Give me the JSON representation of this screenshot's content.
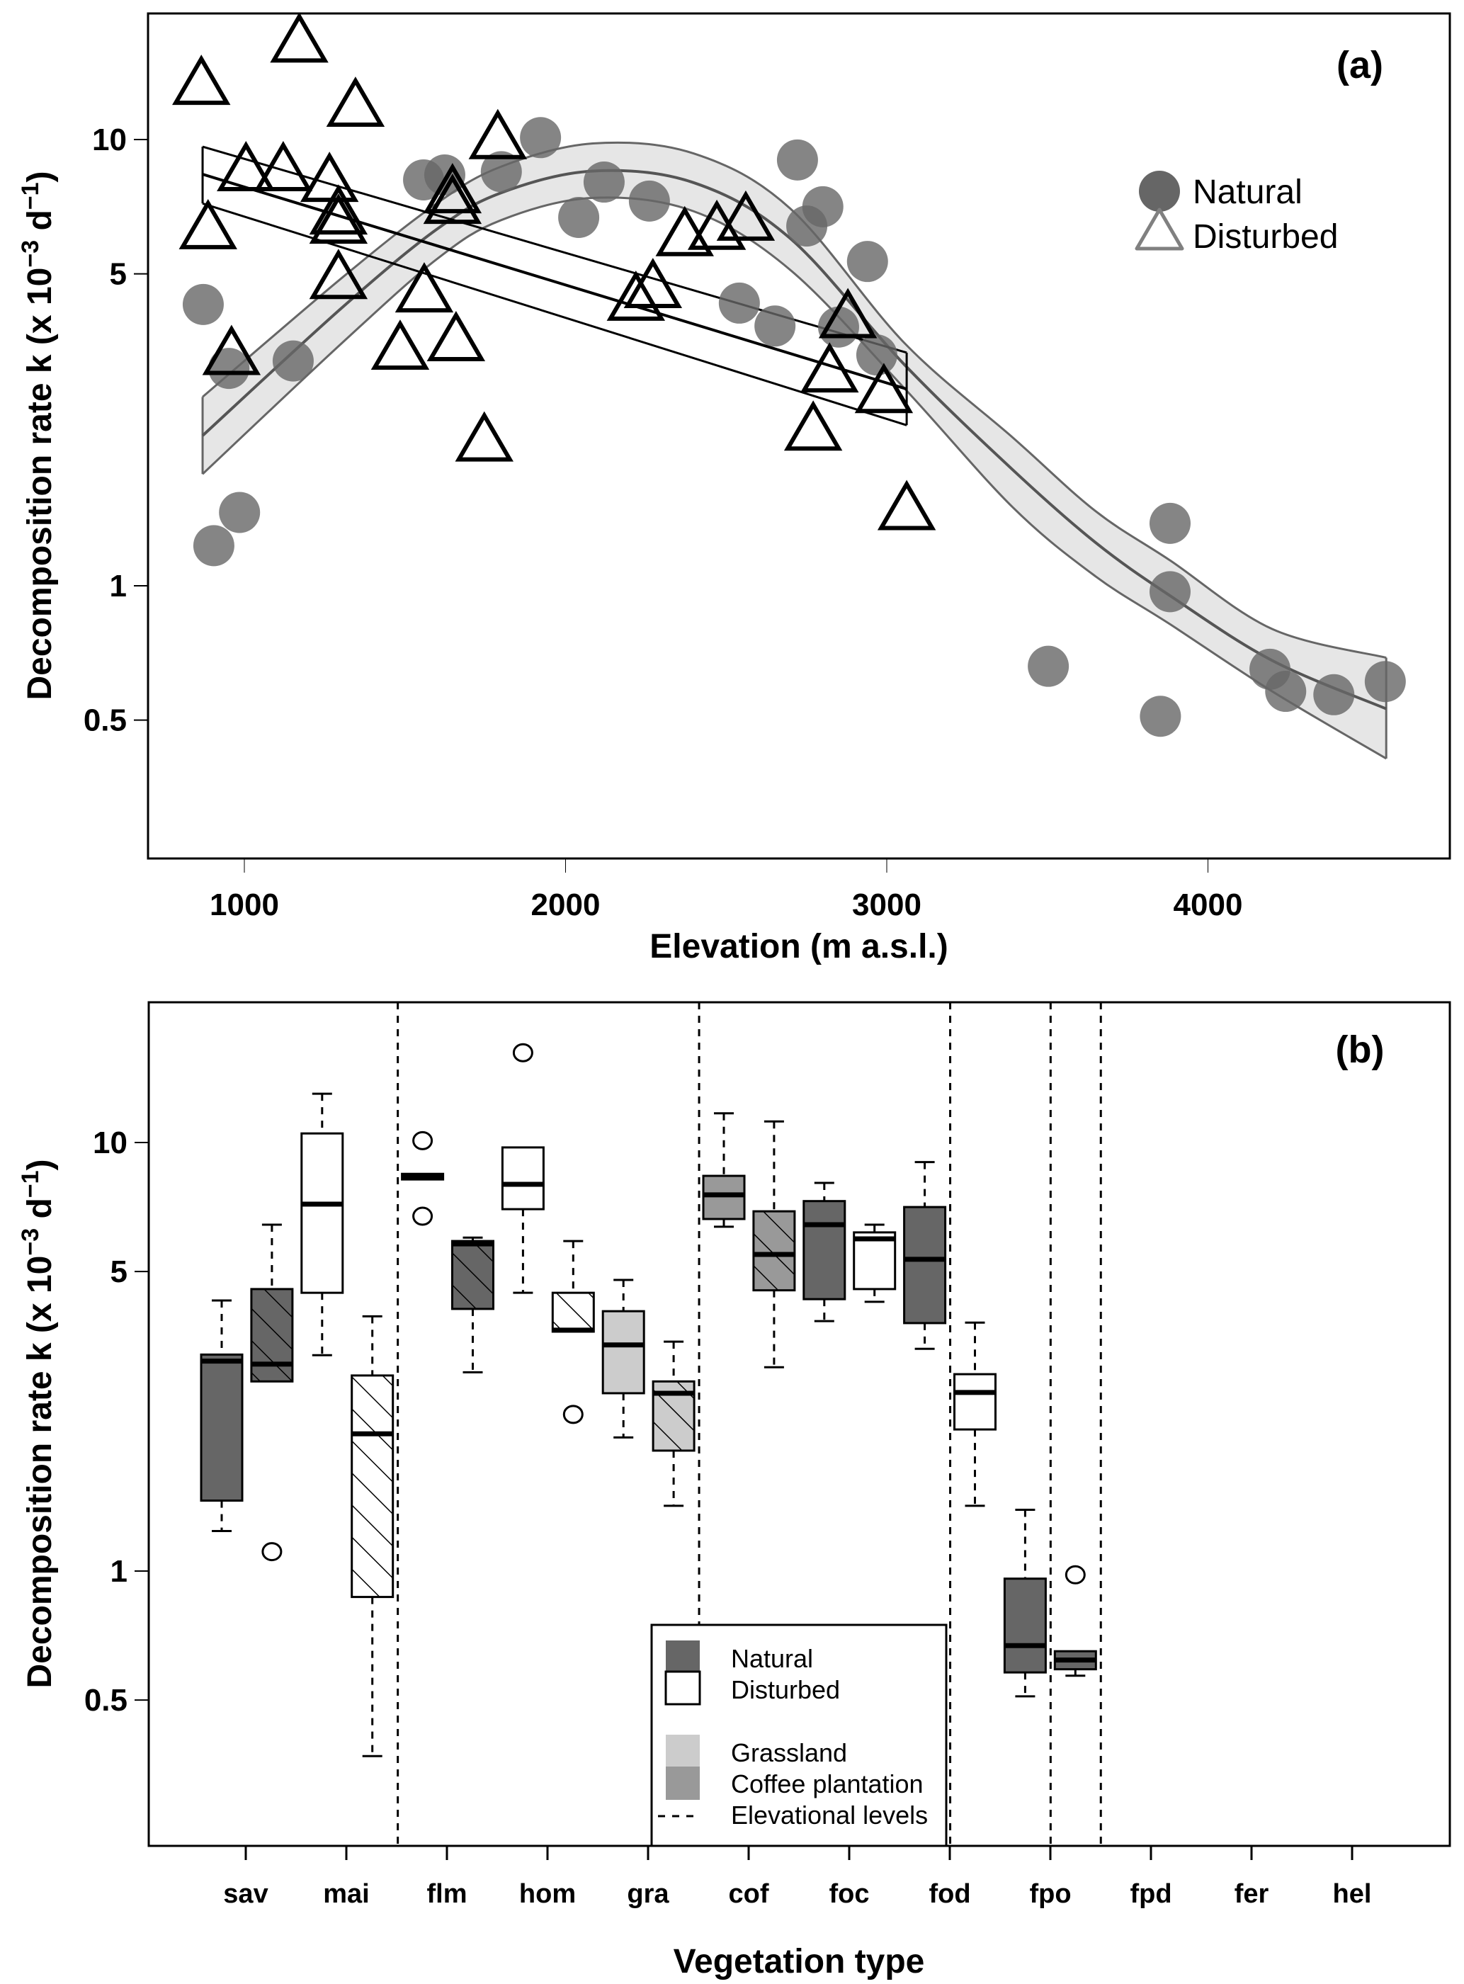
{
  "chart_data": [
    {
      "panel": "a",
      "type": "scatter",
      "panel_label": "(a)",
      "xlabel": "Elevation (m a.s.l.)",
      "ylabel": "Decomposition rate k (x 10^-3 d^-1)",
      "ylabel_parts": {
        "main": "Decomposition rate k (x 10",
        "exp1": "−3",
        "mid": " d",
        "exp2": "−1",
        "end": ")"
      },
      "xlim": [
        770,
        4800
      ],
      "ylim": [
        0.25,
        20
      ],
      "yscale": "log",
      "x_ticks": [
        1000,
        2000,
        3000,
        4000
      ],
      "x_tick_labels": [
        "1000",
        "2000",
        "3000",
        "4000"
      ],
      "y_ticks": [
        0.5,
        1,
        5,
        10
      ],
      "y_tick_labels": [
        "0.5",
        "1",
        "5",
        "10"
      ],
      "legend": {
        "position": "top-right",
        "entries": [
          {
            "label": "Natural",
            "marker": "filled-circle",
            "color": "#666666"
          },
          {
            "label": "Disturbed",
            "marker": "open-triangle",
            "color": "#808080"
          }
        ]
      },
      "series": [
        {
          "name": "Natural",
          "marker": "filled-circle",
          "color": "#666666",
          "points": [
            [
              872,
              4.27
            ],
            [
              952,
              3.07
            ],
            [
              1152,
              3.19
            ],
            [
              985,
              1.46
            ],
            [
              905,
              1.23
            ],
            [
              1558,
              8.12
            ],
            [
              1624,
              8.33
            ],
            [
              1800,
              8.47
            ],
            [
              1922,
              10.1
            ],
            [
              2041,
              6.69
            ],
            [
              2120,
              8.03
            ],
            [
              2261,
              7.28
            ],
            [
              2541,
              4.3
            ],
            [
              2652,
              3.82
            ],
            [
              2722,
              9.0
            ],
            [
              2751,
              6.4
            ],
            [
              2801,
              7.07
            ],
            [
              2850,
              3.8
            ],
            [
              2940,
              5.33
            ],
            [
              2969,
              3.29
            ],
            [
              3503,
              0.66
            ],
            [
              3852,
              0.51
            ],
            [
              3882,
              1.38
            ],
            [
              3882,
              0.97
            ],
            [
              4193,
              0.65
            ],
            [
              4242,
              0.58
            ],
            [
              4392,
              0.57
            ],
            [
              4552,
              0.61
            ]
          ]
        },
        {
          "name": "Disturbed",
          "marker": "open-triangle",
          "color": "#000000",
          "points": [
            [
              866,
              13.1
            ],
            [
              887,
              6.22
            ],
            [
              960,
              3.25
            ],
            [
              1005,
              8.39
            ],
            [
              1121,
              8.39
            ],
            [
              1171,
              16.3
            ],
            [
              1265,
              7.94
            ],
            [
              1293,
              6.71
            ],
            [
              1293,
              6.4
            ],
            [
              1293,
              4.81
            ],
            [
              1346,
              11.7
            ],
            [
              1485,
              3.34
            ],
            [
              1560,
              4.49
            ],
            [
              1648,
              7.49
            ],
            [
              1648,
              7.09
            ],
            [
              1659,
              3.49
            ],
            [
              1747,
              2.08
            ],
            [
              1789,
              9.9
            ],
            [
              2219,
              4.3
            ],
            [
              2272,
              4.59
            ],
            [
              2371,
              6.0
            ],
            [
              2471,
              6.2
            ],
            [
              2561,
              6.5
            ],
            [
              2771,
              2.2
            ],
            [
              2822,
              2.97
            ],
            [
              2879,
              3.93
            ],
            [
              2991,
              2.67
            ],
            [
              3062,
              1.46
            ]
          ]
        }
      ],
      "fits": [
        {
          "name": "Natural fit (with confidence band)",
          "color": "#555555",
          "band_color": "#e6e6e6",
          "x": [
            870,
            1304,
            1600,
            1800,
            2085,
            2400,
            2700,
            3055,
            3392,
            3650,
            3882,
            4200,
            4555
          ],
          "y": [
            2.17,
            4.2,
            6.3,
            7.6,
            8.5,
            8.0,
            6.0,
            3.13,
            1.82,
            1.25,
            0.95,
            0.68,
            0.53
          ],
          "upper": [
            2.65,
            4.9,
            7.2,
            8.7,
            9.8,
            9.3,
            7.0,
            3.5,
            2.15,
            1.47,
            1.14,
            0.8,
            0.69
          ],
          "lower": [
            1.78,
            3.5,
            5.4,
            6.6,
            7.4,
            6.9,
            5.1,
            2.77,
            1.5,
            1.05,
            0.82,
            0.58,
            0.41
          ]
        },
        {
          "name": "Disturbed fit (linear, with confidence bounds)",
          "color": "#000000",
          "x": [
            870,
            3062
          ],
          "y": [
            8.36,
            2.76
          ],
          "upper": [
            9.64,
            3.33
          ],
          "lower": [
            7.19,
            2.29
          ]
        }
      ]
    },
    {
      "panel": "b",
      "type": "box",
      "panel_label": "(b)",
      "xlabel": "Vegetation type",
      "ylabel": "Decomposition rate k (x 10^-3 d^-1)",
      "ylabel_parts": {
        "main": "Decomposition rate k (x 10",
        "exp1": "−3",
        "mid": " d",
        "exp2": "−1",
        "end": ")"
      },
      "ylim": [
        0.25,
        20
      ],
      "yscale": "log",
      "y_ticks": [
        0.5,
        1,
        5,
        10
      ],
      "y_tick_labels": [
        "0.5",
        "1",
        "5",
        "10"
      ],
      "categories": [
        "sav",
        "mai",
        "flm",
        "hom",
        "gra",
        "cof",
        "foc",
        "fod",
        "fpo",
        "fpd",
        "fer",
        "hel"
      ],
      "elevational_level_dividers_after_box": [
        4,
        10,
        15,
        17,
        18
      ],
      "legend": {
        "position": "bottom-center",
        "entries": [
          {
            "label": "Natural",
            "swatch": "#666666",
            "border": false
          },
          {
            "label": "Disturbed",
            "swatch": "#ffffff",
            "border": true
          },
          {
            "label": "",
            "swatch": null
          },
          {
            "label": "Grassland",
            "swatch": "#cccccc",
            "border": false
          },
          {
            "label": "Coffee plantation",
            "swatch": "#999999",
            "border": false
          },
          {
            "label": "Elevational levels",
            "swatch": "dashed-line"
          }
        ]
      },
      "boxes": [
        {
          "group": "sav",
          "fill": "#666666",
          "hatched": false,
          "whisker_low": 1.24,
          "q1": 1.46,
          "median": 3.09,
          "q3": 3.2,
          "whisker_high": 4.28,
          "outliers": []
        },
        {
          "group": "sav",
          "fill": "#666666",
          "hatched": true,
          "whisker_low": 2.77,
          "q1": 2.77,
          "median": 3.04,
          "q3": 4.55,
          "whisker_high": 6.43,
          "outliers": [
            1.11
          ]
        },
        {
          "group": "mai",
          "fill": "#ffffff",
          "hatched": false,
          "whisker_low": 3.19,
          "q1": 4.46,
          "median": 7.18,
          "q3": 10.5,
          "whisker_high": 13.0,
          "outliers": []
        },
        {
          "group": "mai",
          "fill": "#ffffff",
          "hatched": true,
          "whisker_low": 0.37,
          "q1": 0.87,
          "median": 2.09,
          "q3": 2.86,
          "whisker_high": 3.93,
          "outliers": []
        },
        {
          "group": "flm",
          "fill": "#666666",
          "hatched": false,
          "whisker_low": 8.2,
          "q1": 8.2,
          "median": 8.33,
          "q3": 8.45,
          "whisker_high": 8.45,
          "outliers": [
            10.1,
            6.73
          ]
        },
        {
          "group": "flm",
          "fill": "#666666",
          "hatched": true,
          "whisker_low": 2.91,
          "q1": 4.09,
          "median": 5.8,
          "q3": 5.89,
          "whisker_high": 6.0,
          "outliers": []
        },
        {
          "group": "hom",
          "fill": "#ffffff",
          "hatched": false,
          "whisker_low": 4.46,
          "q1": 6.99,
          "median": 7.99,
          "q3": 9.74,
          "whisker_high": 9.74,
          "outliers": [
            16.2
          ]
        },
        {
          "group": "hom",
          "fill": "#ffffff",
          "hatched": true,
          "whisker_low": 3.62,
          "q1": 3.62,
          "median": 3.65,
          "q3": 4.46,
          "whisker_high": 5.89,
          "outliers": [
            2.32
          ]
        },
        {
          "group": "gra",
          "fill": "#cccccc",
          "hatched": false,
          "whisker_low": 2.05,
          "q1": 2.6,
          "median": 3.37,
          "q3": 4.04,
          "whisker_high": 4.78,
          "outliers": []
        },
        {
          "group": "gra",
          "fill": "#cccccc",
          "hatched": true,
          "whisker_low": 1.42,
          "q1": 1.91,
          "median": 2.6,
          "q3": 2.77,
          "whisker_high": 3.43,
          "outliers": []
        },
        {
          "group": "cof",
          "fill": "#999999",
          "hatched": false,
          "whisker_low": 6.36,
          "q1": 6.63,
          "median": 7.55,
          "q3": 8.36,
          "whisker_high": 11.7,
          "outliers": []
        },
        {
          "group": "cof",
          "fill": "#999999",
          "hatched": true,
          "whisker_low": 2.99,
          "q1": 4.52,
          "median": 5.48,
          "q3": 6.91,
          "whisker_high": 11.2,
          "outliers": []
        },
        {
          "group": "foc",
          "fill": "#666666",
          "hatched": false,
          "whisker_low": 3.83,
          "q1": 4.31,
          "median": 6.43,
          "q3": 7.3,
          "whisker_high": 8.05,
          "outliers": []
        },
        {
          "group": "fod",
          "fill": "#ffffff",
          "hatched": false,
          "whisker_low": 4.25,
          "q1": 4.55,
          "median": 5.96,
          "q3": 6.17,
          "whisker_high": 6.43,
          "outliers": []
        },
        {
          "group": "fpo",
          "fill": "#666666",
          "hatched": false,
          "whisker_low": 3.3,
          "q1": 3.79,
          "median": 5.34,
          "q3": 7.07,
          "whisker_high": 9.0,
          "outliers": []
        },
        {
          "group": "fpd",
          "fill": "#ffffff",
          "hatched": false,
          "whisker_low": 1.42,
          "q1": 2.14,
          "median": 2.61,
          "q3": 2.88,
          "whisker_high": 3.8,
          "outliers": []
        },
        {
          "group": "fer",
          "fill": "#666666",
          "hatched": false,
          "whisker_low": 0.51,
          "q1": 0.58,
          "median": 0.67,
          "q3": 0.96,
          "whisker_high": 1.39,
          "outliers": []
        },
        {
          "group": "hel",
          "fill": "#666666",
          "hatched": false,
          "whisker_low": 0.57,
          "q1": 0.59,
          "median": 0.62,
          "q3": 0.65,
          "whisker_high": 0.65,
          "outliers": [
            0.98
          ]
        }
      ]
    }
  ]
}
